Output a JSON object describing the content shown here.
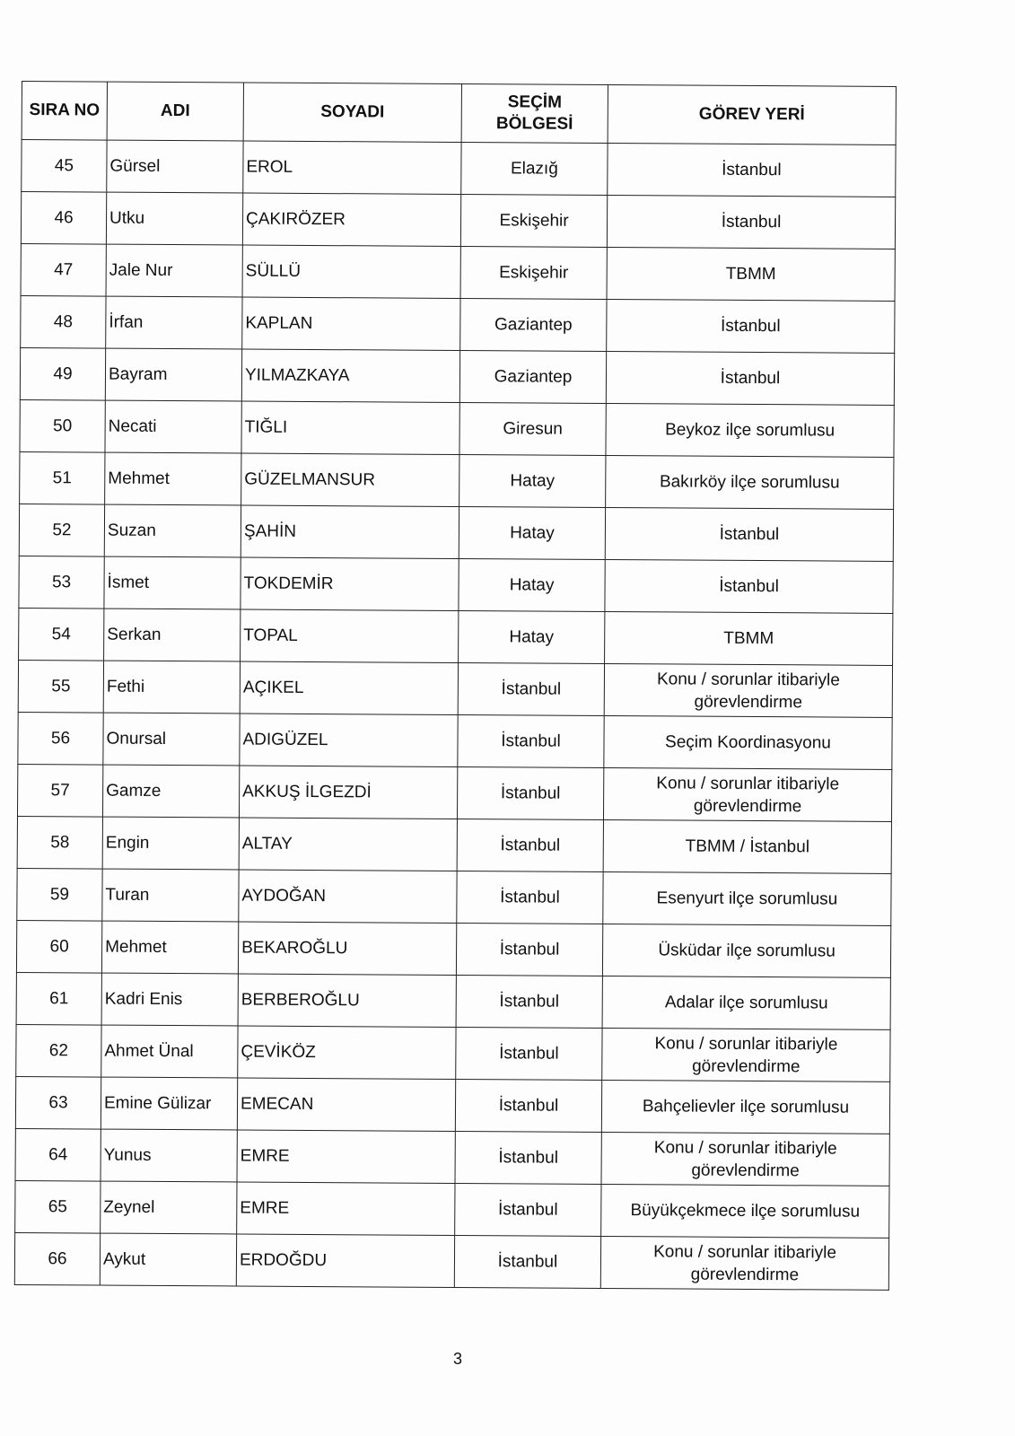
{
  "headers": [
    "SIRA NO",
    "ADI",
    "SOYADI",
    "SEÇİM BÖLGESİ",
    "GÖREV YERİ"
  ],
  "rows": [
    [
      "45",
      "Gürsel",
      "EROL",
      "Elazığ",
      "İstanbul"
    ],
    [
      "46",
      "Utku",
      "ÇAKIRÖZER",
      "Eskişehir",
      "İstanbul"
    ],
    [
      "47",
      "Jale Nur",
      "SÜLLÜ",
      "Eskişehir",
      "TBMM"
    ],
    [
      "48",
      "İrfan",
      "KAPLAN",
      "Gaziantep",
      "İstanbul"
    ],
    [
      "49",
      "Bayram",
      "YILMAZKAYA",
      "Gaziantep",
      "İstanbul"
    ],
    [
      "50",
      "Necati",
      "TIĞLI",
      "Giresun",
      "Beykoz ilçe sorumlusu"
    ],
    [
      "51",
      "Mehmet",
      "GÜZELMANSUR",
      "Hatay",
      "Bakırköy ilçe sorumlusu"
    ],
    [
      "52",
      "Suzan",
      "ŞAHİN",
      "Hatay",
      "İstanbul"
    ],
    [
      "53",
      "İsmet",
      "TOKDEMİR",
      "Hatay",
      "İstanbul"
    ],
    [
      "54",
      "Serkan",
      "TOPAL",
      "Hatay",
      "TBMM"
    ],
    [
      "55",
      "Fethi",
      "AÇIKEL",
      "İstanbul",
      "Konu / sorunlar itibariyle görevlendirme"
    ],
    [
      "56",
      "Onursal",
      "ADIGÜZEL",
      "İstanbul",
      "Seçim Koordinasyonu"
    ],
    [
      "57",
      "Gamze",
      "AKKUŞ İLGEZDİ",
      "İstanbul",
      "Konu / sorunlar itibariyle görevlendirme"
    ],
    [
      "58",
      "Engin",
      "ALTAY",
      "İstanbul",
      "TBMM / İstanbul"
    ],
    [
      "59",
      "Turan",
      "AYDOĞAN",
      "İstanbul",
      "Esenyurt ilçe sorumlusu"
    ],
    [
      "60",
      "Mehmet",
      "BEKAROĞLU",
      "İstanbul",
      "Üsküdar ilçe sorumlusu"
    ],
    [
      "61",
      "Kadri Enis",
      "BERBEROĞLU",
      "İstanbul",
      "Adalar ilçe sorumlusu"
    ],
    [
      "62",
      "Ahmet Ünal",
      "ÇEVİKÖZ",
      "İstanbul",
      "Konu / sorunlar itibariyle görevlendirme"
    ],
    [
      "63",
      "Emine Gülizar",
      "EMECAN",
      "İstanbul",
      "Bahçelievler ilçe sorumlusu"
    ],
    [
      "64",
      "Yunus",
      "EMRE",
      "İstanbul",
      "Konu / sorunlar itibariyle görevlendirme"
    ],
    [
      "65",
      "Zeynel",
      "EMRE",
      "İstanbul",
      "Büyükçekmece ilçe sorumlusu"
    ],
    [
      "66",
      "Aykut",
      "ERDOĞDU",
      "İstanbul",
      "Konu / sorunlar itibariyle görevlendirme"
    ]
  ],
  "page_number": "3"
}
